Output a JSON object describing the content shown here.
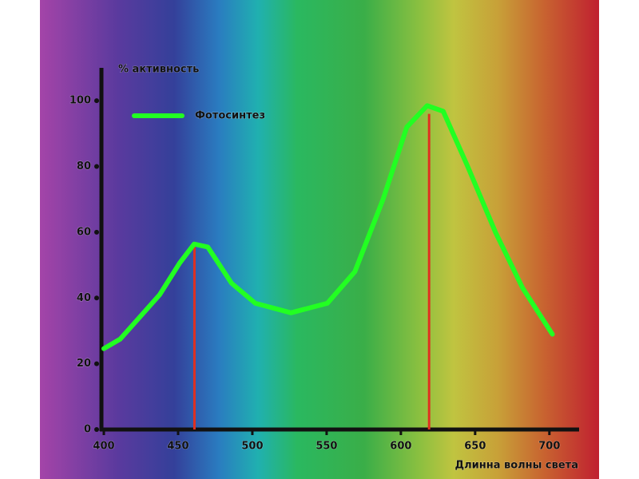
{
  "chart_data": {
    "type": "line",
    "x_label": "Длинна волны света",
    "y_label": "% активность",
    "x": [
      400,
      411,
      437.6,
      451,
      460.8,
      470,
      486,
      502,
      526,
      550.5,
      569,
      588,
      604,
      617.7,
      628.5,
      645,
      663.7,
      682,
      702
    ],
    "series": [
      {
        "name": "Фотосинтез",
        "color": "#22ff22",
        "values": [
          24.6,
          27.5,
          41,
          50.6,
          56.4,
          55.5,
          44.5,
          38.4,
          35.5,
          38.4,
          48,
          70,
          92,
          98.5,
          96.8,
          80,
          60,
          43,
          29
        ]
      }
    ],
    "peak_markers": {
      "color": "#e03020",
      "x": [
        461,
        619
      ],
      "values": [
        56,
        96
      ]
    },
    "xlim": [
      400,
      720
    ],
    "ylim": [
      0,
      110
    ],
    "xticks": [
      400,
      450,
      500,
      550,
      600,
      650,
      700
    ],
    "yticks": [
      0,
      20,
      40,
      60,
      80,
      100
    ],
    "legend": "upper left"
  }
}
